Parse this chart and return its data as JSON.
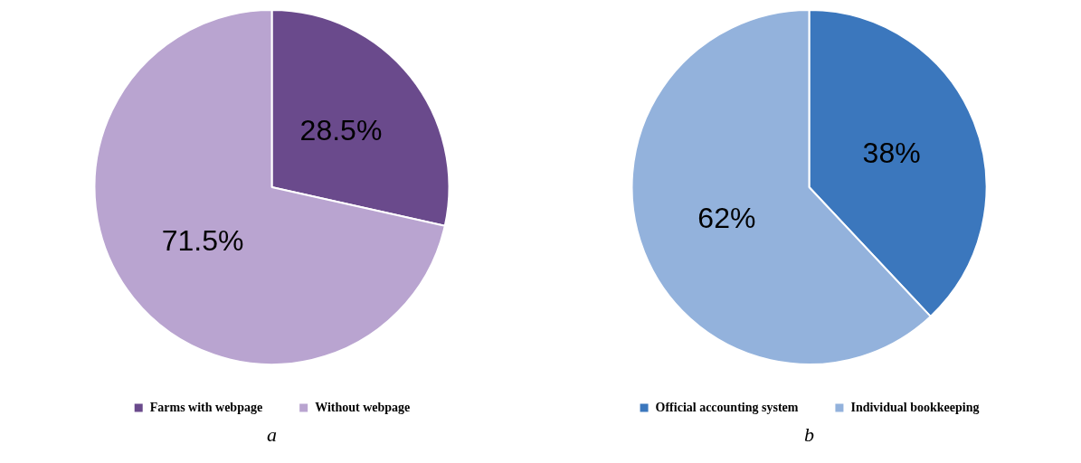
{
  "chart_data": [
    {
      "type": "pie",
      "categories": [
        "Farms with webpage",
        "Without webpage"
      ],
      "values": [
        28.5,
        71.5
      ],
      "colors": [
        "#6a4a8c",
        "#b9a4d0"
      ],
      "value_labels": [
        "28.5%",
        "71.5%"
      ],
      "legend": "bottom",
      "annotations": [
        "a"
      ]
    },
    {
      "type": "pie",
      "categories": [
        "Official accounting system",
        "Individual bookkeeping"
      ],
      "values": [
        38,
        62
      ],
      "colors": [
        "#3b77bd",
        "#93b2dc"
      ],
      "value_labels": [
        "38%",
        "62%"
      ],
      "legend": "bottom",
      "annotations": [
        "b"
      ]
    }
  ]
}
